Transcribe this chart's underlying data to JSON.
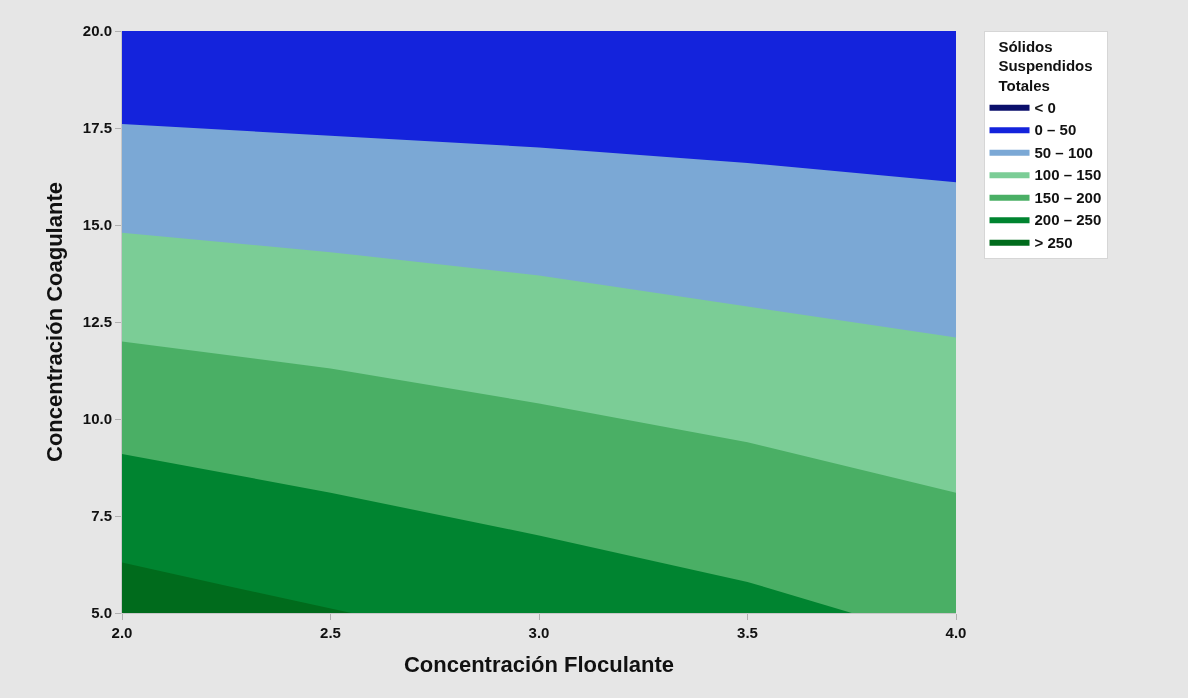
{
  "chart_data": {
    "type": "area",
    "xlabel": "Concentración Floculante",
    "ylabel": "Concentración Coagulante",
    "legend_title": "Sólidos Suspendidos Totales",
    "xlim": [
      2,
      4
    ],
    "ylim": [
      5,
      20
    ],
    "xticks": [
      {
        "value": 2,
        "label": "2.0"
      },
      {
        "value": 2.5,
        "label": "2.5"
      },
      {
        "value": 3,
        "label": "3.0"
      },
      {
        "value": 3.5,
        "label": "3.5"
      },
      {
        "value": 4,
        "label": "4.0"
      }
    ],
    "yticks": [
      {
        "value": 5,
        "label": "5.0"
      },
      {
        "value": 7.5,
        "label": "7.5"
      },
      {
        "value": 10,
        "label": "10.0"
      },
      {
        "value": 12.5,
        "label": "12.5"
      },
      {
        "value": 15,
        "label": "15.0"
      },
      {
        "value": 17.5,
        "label": "17.5"
      },
      {
        "value": 20,
        "label": "20.0"
      }
    ],
    "legend": "top right",
    "series": [
      {
        "name": "< 0",
        "color": "#0b0f6b"
      },
      {
        "name": "0 – 50",
        "color": "#1423dc",
        "x": [
          2,
          4
        ],
        "values": [
          20,
          20
        ]
      },
      {
        "name": "50 – 100",
        "color": "#7ba8d5",
        "x": [
          2,
          2.5,
          3,
          3.5,
          4
        ],
        "values": [
          17.6,
          17.3,
          17.0,
          16.6,
          16.1
        ]
      },
      {
        "name": "100 – 150",
        "color": "#7bcd96",
        "x": [
          2,
          2.5,
          3,
          3.5,
          4
        ],
        "values": [
          14.8,
          14.3,
          13.7,
          12.9,
          12.1
        ]
      },
      {
        "name": "150 – 200",
        "color": "#4aaf65",
        "x": [
          2,
          2.5,
          3,
          3.5,
          4
        ],
        "values": [
          12.0,
          11.3,
          10.4,
          9.4,
          8.1
        ]
      },
      {
        "name": "200 – 250",
        "color": "#008430",
        "x": [
          2,
          2.5,
          3,
          3.5,
          3.75
        ],
        "values": [
          9.1,
          8.1,
          7.0,
          5.8,
          5.0
        ]
      },
      {
        "name": "> 250",
        "color": "#006b1c",
        "x": [
          2,
          2.25,
          2.55
        ],
        "values": [
          6.3,
          5.7,
          5.0
        ]
      }
    ]
  }
}
